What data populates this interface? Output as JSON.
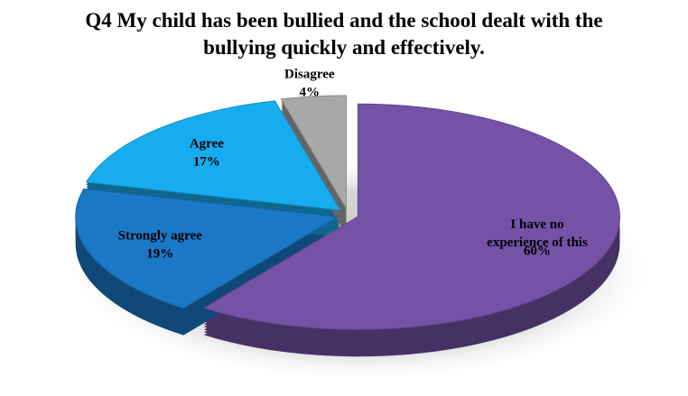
{
  "chart_data": {
    "type": "pie",
    "title": "Q4 My child has been bullied and the school dealt with the bullying quickly and effectively.",
    "categories": [
      "I have no experience of this",
      "Strongly agree",
      "Agree",
      "Disagree"
    ],
    "values": [
      60,
      19,
      17,
      4
    ],
    "value_labels": [
      "60%",
      "19%",
      "17%",
      "4%"
    ],
    "colors": [
      "#7452a6",
      "#1b78c6",
      "#17acef",
      "#a8a8a8"
    ]
  }
}
